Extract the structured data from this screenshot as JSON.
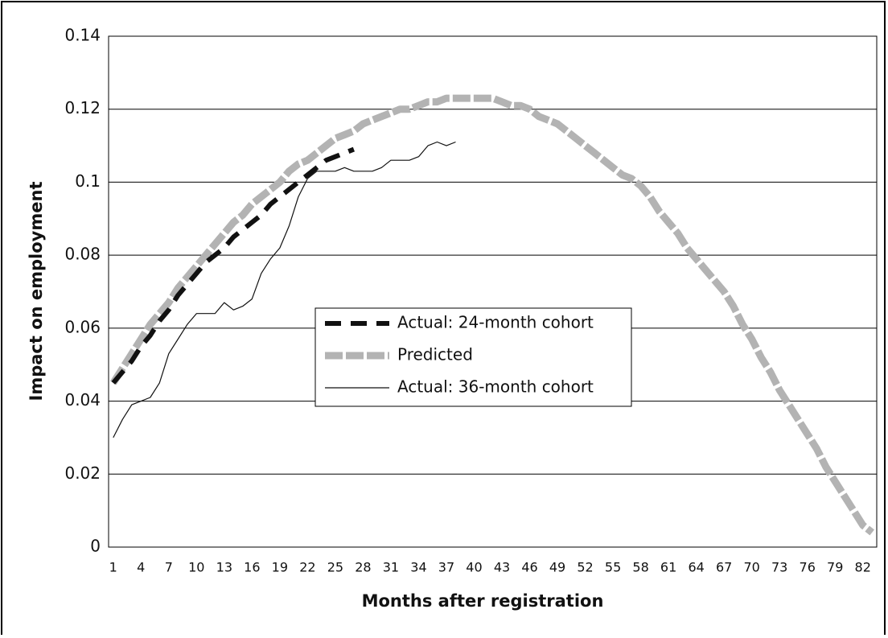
{
  "chart_data": {
    "type": "line",
    "xlabel": "Months after registration",
    "ylabel": "Impact on employment",
    "categories": [
      1,
      null,
      null,
      4,
      null,
      null,
      7,
      null,
      null,
      10,
      null,
      null,
      13,
      null,
      null,
      16,
      null,
      null,
      19,
      null,
      null,
      22,
      null,
      null,
      25,
      null,
      null,
      28,
      null,
      null,
      31,
      null,
      null,
      34,
      null,
      null,
      37,
      null,
      null,
      40,
      null,
      null,
      43,
      null,
      null,
      46,
      null,
      null,
      49,
      null,
      null,
      52,
      null,
      null,
      55,
      null,
      null,
      58,
      null,
      null,
      61,
      null,
      null,
      64,
      null,
      null,
      67,
      null,
      null,
      70,
      null,
      null,
      73,
      null,
      null,
      76,
      null,
      null,
      79,
      null,
      null,
      82,
      null
    ],
    "series": [
      {
        "name": "Actual: 24-month cohort",
        "color": "#111111",
        "values": [
          0.045,
          0.048,
          0.051,
          0.055,
          0.058,
          0.062,
          0.065,
          0.069,
          0.072,
          0.075,
          0.078,
          0.08,
          0.082,
          0.085,
          0.087,
          0.089,
          0.091,
          0.094,
          0.096,
          0.098,
          0.1,
          0.102,
          0.104,
          0.106,
          0.107,
          0.108,
          0.109,
          null,
          null,
          null,
          null,
          null,
          null,
          null,
          null,
          null,
          null,
          null,
          null,
          null,
          null,
          null,
          null,
          null,
          null,
          null,
          null,
          null,
          null,
          null,
          null,
          null,
          null,
          null,
          null,
          null,
          null,
          null,
          null,
          null,
          null,
          null,
          null,
          null,
          null,
          null,
          null,
          null,
          null,
          null,
          null,
          null,
          null,
          null,
          null,
          null,
          null,
          null,
          null,
          null,
          null,
          null,
          null
        ]
      },
      {
        "name": "Predicted",
        "color": "#b3b3b3",
        "values": [
          0.045,
          0.049,
          0.053,
          0.057,
          0.061,
          0.064,
          0.067,
          0.071,
          0.074,
          0.077,
          0.08,
          0.083,
          0.086,
          0.089,
          0.091,
          0.094,
          0.096,
          0.098,
          0.1,
          0.103,
          0.105,
          0.106,
          0.108,
          0.11,
          0.112,
          0.113,
          0.114,
          0.116,
          0.117,
          0.118,
          0.119,
          0.12,
          0.12,
          0.121,
          0.122,
          0.122,
          0.123,
          0.123,
          0.123,
          0.123,
          0.123,
          0.123,
          0.122,
          0.121,
          0.121,
          0.12,
          0.118,
          0.117,
          0.116,
          0.114,
          0.112,
          0.11,
          0.108,
          0.106,
          0.104,
          0.102,
          0.101,
          0.099,
          0.096,
          0.092,
          0.089,
          0.086,
          0.082,
          0.079,
          0.076,
          0.073,
          0.07,
          0.066,
          0.061,
          0.057,
          0.052,
          0.048,
          0.043,
          0.039,
          0.035,
          0.031,
          0.027,
          0.022,
          0.018,
          0.014,
          0.01,
          0.006,
          0.004
        ]
      },
      {
        "name": "Actual: 36-month cohort",
        "color": "#111111",
        "values": [
          0.03,
          0.035,
          0.039,
          0.04,
          0.041,
          0.045,
          0.053,
          0.057,
          0.061,
          0.064,
          0.064,
          0.064,
          0.067,
          0.065,
          0.066,
          0.068,
          0.075,
          0.079,
          0.082,
          0.088,
          0.096,
          0.101,
          0.103,
          0.103,
          0.103,
          0.104,
          0.103,
          0.103,
          0.103,
          0.104,
          0.106,
          0.106,
          0.106,
          0.107,
          0.11,
          0.111,
          0.11,
          0.111,
          null,
          null,
          null,
          null,
          null,
          null,
          null,
          null,
          null,
          null,
          null,
          null,
          null,
          null,
          null,
          null,
          null,
          null,
          null,
          null,
          null,
          null,
          null,
          null,
          null,
          null,
          null,
          null,
          null,
          null,
          null,
          null,
          null,
          null,
          null,
          null,
          null,
          null,
          null,
          null,
          null,
          null,
          null,
          null,
          null
        ]
      }
    ],
    "ylim": [
      0,
      0.14
    ],
    "yticks": [
      0,
      0.02,
      0.04,
      0.06,
      0.08,
      0.1,
      0.12,
      0.14
    ],
    "grid": true
  }
}
